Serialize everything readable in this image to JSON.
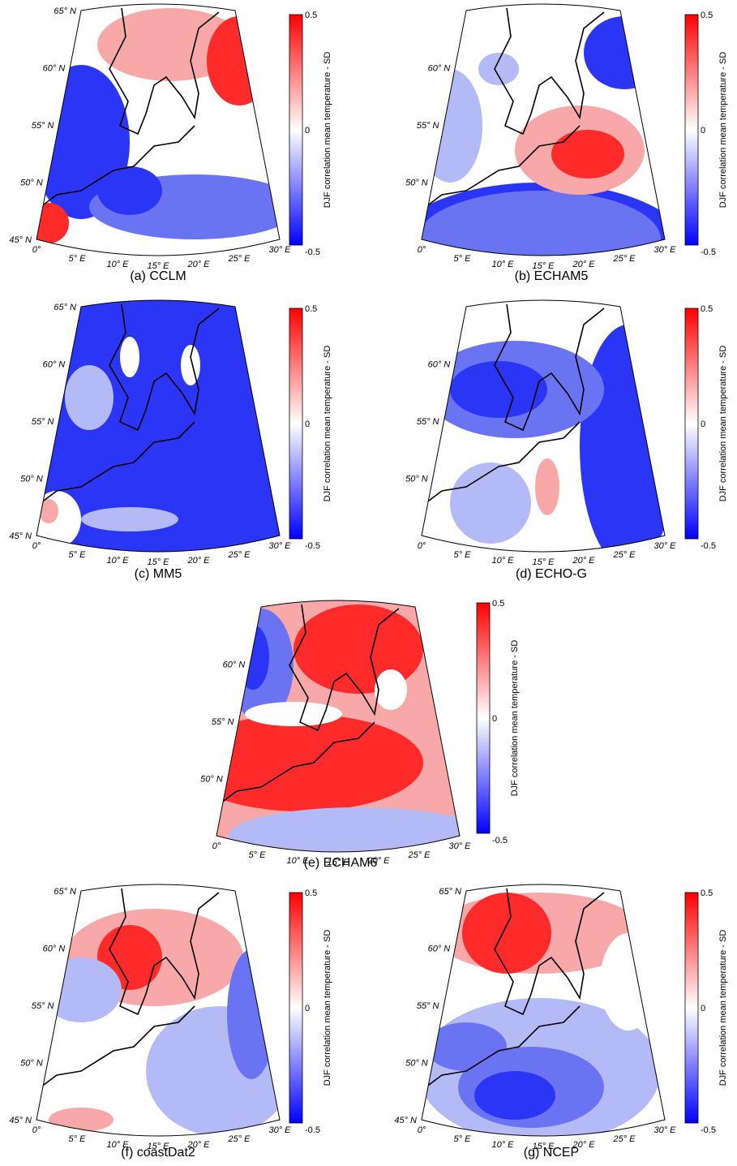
{
  "panels": [
    {
      "caption": "(a) CCLM",
      "colorbar": {
        "label": "DJF correlation mean temperature - SD",
        "ticks": [
          "0.5",
          "0",
          "-0.5"
        ]
      },
      "lat_labels": [
        "65° N",
        "60° N",
        "55° N",
        "50° N",
        "45° N"
      ],
      "lon_labels": [
        "0°",
        "5° E",
        "10° E",
        "15° E",
        "20° E",
        "25° E",
        "30° E"
      ]
    },
    {
      "caption": "(b) ECHAM5",
      "colorbar": {
        "label": "DJF correlation mean temperature - SD",
        "ticks": [
          "0.5",
          "0",
          "-0.5"
        ]
      },
      "lat_labels": [
        "60° N",
        "55° N",
        "50° N"
      ],
      "lon_labels": [
        "0°",
        "5° E",
        "10° E",
        "15° E",
        "20° E",
        "25° E",
        "30° E"
      ]
    },
    {
      "caption": "(c) MM5",
      "colorbar": {
        "label": "DJF correlation mean temperature - SD",
        "ticks": [
          "0.5",
          "0",
          "-0.5"
        ]
      },
      "lat_labels": [
        "65° N",
        "60° N",
        "55° N",
        "50° N",
        "45° N"
      ],
      "lon_labels": [
        "0°",
        "5° E",
        "10° E",
        "15° E",
        "20° E",
        "25° E",
        "30° E"
      ]
    },
    {
      "caption": "(d) ECHO-G",
      "colorbar": {
        "label": "DJF correlation mean temperature - SD",
        "ticks": [
          "0.5",
          "0",
          "-0.5"
        ]
      },
      "lat_labels": [
        "60° N",
        "55° N",
        "50° N"
      ],
      "lon_labels": [
        "0°",
        "5° E",
        "10° E",
        "15° E",
        "20° E",
        "25° E",
        "30° E"
      ]
    },
    {
      "caption": "(e) ECHAM6",
      "colorbar": {
        "label": "DJF correlation mean temperature - SD",
        "ticks": [
          "0.5",
          "0",
          "-0.5"
        ]
      },
      "lat_labels": [
        "60° N",
        "55° N",
        "50° N"
      ],
      "lon_labels": [
        "0°",
        "5° E",
        "10° E",
        "15° E",
        "20° E",
        "25° E",
        "30° E"
      ]
    },
    {
      "caption": "(f) coastDat2",
      "colorbar": {
        "label": "DJF correlation mean temperature - SD",
        "ticks": [
          "0.5",
          "0",
          "-0.5"
        ]
      },
      "lat_labels": [
        "65° N",
        "60° N",
        "55° N",
        "50° N",
        "45° N"
      ],
      "lon_labels": [
        "0°",
        "5° E",
        "10° E",
        "15° E",
        "20° E",
        "25° E",
        "30° E"
      ]
    },
    {
      "caption": "(g) NCEP",
      "colorbar": {
        "label": "DJF correlation mean temperature - SD",
        "ticks": [
          "0.5",
          "0",
          "-0.5"
        ]
      },
      "lat_labels": [
        "65° N",
        "60° N",
        "55° N",
        "50° N",
        "45° N"
      ],
      "lon_labels": [
        "0°",
        "5° E",
        "10° E",
        "15° E",
        "20° E",
        "25° E",
        "30° E"
      ]
    }
  ]
}
